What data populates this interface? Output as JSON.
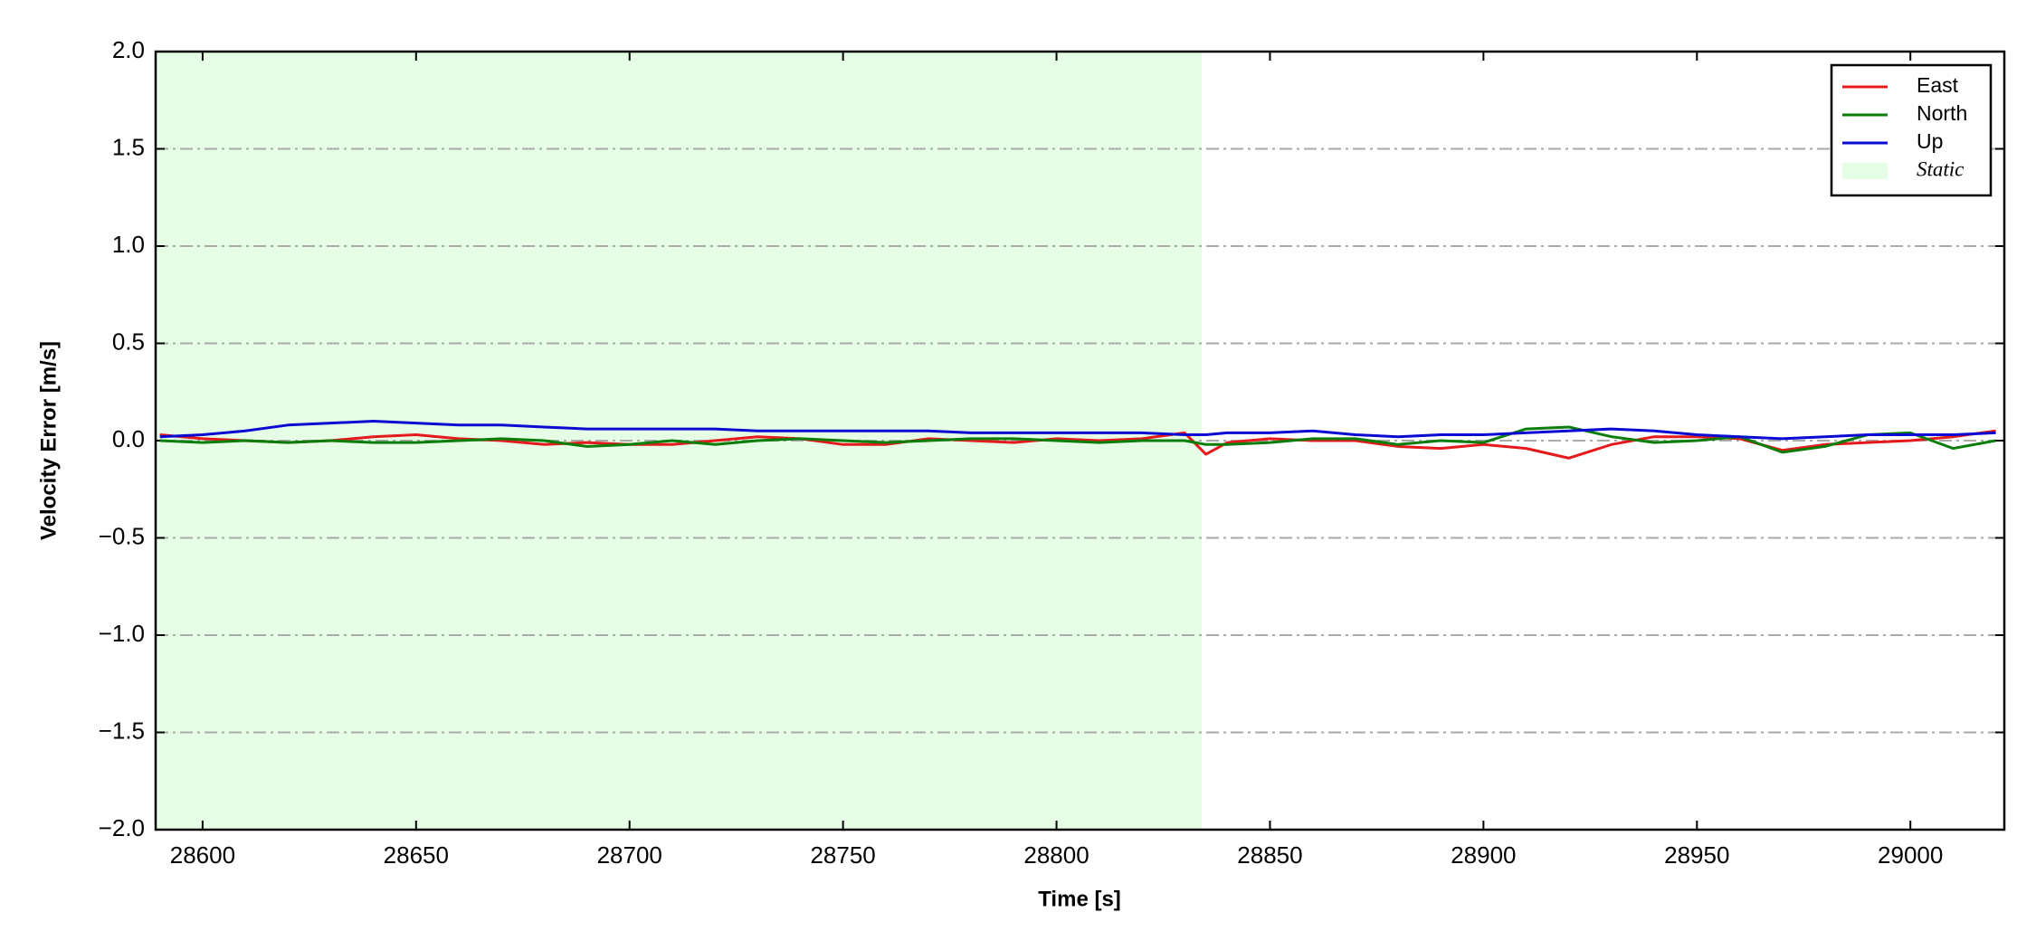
{
  "chart_data": {
    "type": "line",
    "x_label": "Time [s]",
    "y_label": "Velocity Error [m/s]",
    "xlim": [
      28589,
      29022
    ],
    "ylim": [
      -2,
      2
    ],
    "xticks": [
      28600,
      28650,
      28700,
      28750,
      28800,
      28850,
      28900,
      28950,
      29000
    ],
    "yticks": [
      {
        "value": -2,
        "label": "−2.0"
      },
      {
        "value": -1.5,
        "label": "−1.5"
      },
      {
        "value": -1,
        "label": "−1.0"
      },
      {
        "value": -0.5,
        "label": "−0.5"
      },
      {
        "value": 0,
        "label": "0.0"
      },
      {
        "value": 0.5,
        "label": "0.5"
      },
      {
        "value": 1,
        "label": "1.0"
      },
      {
        "value": 1.5,
        "label": "1.5"
      },
      {
        "value": 2,
        "label": "2.0"
      }
    ],
    "grid": true,
    "legend_position": "upper right",
    "shaded_region": {
      "label": "Static",
      "x": [
        28589,
        28834
      ],
      "color": "#e6fde6"
    },
    "x": [
      28590,
      28600,
      28610,
      28620,
      28630,
      28640,
      28650,
      28660,
      28670,
      28680,
      28690,
      28700,
      28710,
      28720,
      28730,
      28740,
      28750,
      28760,
      28770,
      28780,
      28790,
      28800,
      28810,
      28820,
      28830,
      28835,
      28840,
      28850,
      28860,
      28870,
      28880,
      28890,
      28900,
      28910,
      28920,
      28930,
      28940,
      28950,
      28960,
      28970,
      28980,
      28990,
      29000,
      29010,
      29020
    ],
    "series": [
      {
        "name": "East",
        "color": "#e41a1c",
        "values": [
          0.03,
          0.01,
          0.0,
          -0.01,
          0.0,
          0.02,
          0.03,
          0.01,
          0.0,
          -0.02,
          -0.01,
          -0.02,
          -0.02,
          0.0,
          0.02,
          0.01,
          -0.02,
          -0.02,
          0.01,
          0.0,
          -0.01,
          0.01,
          0.0,
          0.01,
          0.04,
          -0.07,
          -0.01,
          0.01,
          0.0,
          0.0,
          -0.03,
          -0.04,
          -0.02,
          -0.04,
          -0.09,
          -0.02,
          0.02,
          0.02,
          0.01,
          -0.05,
          -0.02,
          -0.01,
          0.0,
          0.02,
          0.05
        ]
      },
      {
        "name": "North",
        "color": "#0a7d0a",
        "values": [
          0.0,
          -0.01,
          0.0,
          -0.01,
          0.0,
          -0.01,
          -0.01,
          0.0,
          0.01,
          0.0,
          -0.03,
          -0.02,
          0.0,
          -0.02,
          0.0,
          0.01,
          0.0,
          -0.01,
          0.0,
          0.01,
          0.01,
          0.0,
          -0.01,
          0.0,
          0.0,
          -0.02,
          -0.02,
          -0.01,
          0.01,
          0.01,
          -0.02,
          0.0,
          -0.01,
          0.06,
          0.07,
          0.02,
          -0.01,
          0.0,
          0.02,
          -0.06,
          -0.03,
          0.03,
          0.04,
          -0.04,
          0.0
        ]
      },
      {
        "name": "Up",
        "color": "#0a0ad2",
        "values": [
          0.02,
          0.03,
          0.05,
          0.08,
          0.09,
          0.1,
          0.09,
          0.08,
          0.08,
          0.07,
          0.06,
          0.06,
          0.06,
          0.06,
          0.05,
          0.05,
          0.05,
          0.05,
          0.05,
          0.04,
          0.04,
          0.04,
          0.04,
          0.04,
          0.03,
          0.03,
          0.04,
          0.04,
          0.05,
          0.03,
          0.02,
          0.03,
          0.03,
          0.04,
          0.05,
          0.06,
          0.05,
          0.03,
          0.02,
          0.01,
          0.02,
          0.03,
          0.03,
          0.03,
          0.04
        ]
      }
    ]
  }
}
